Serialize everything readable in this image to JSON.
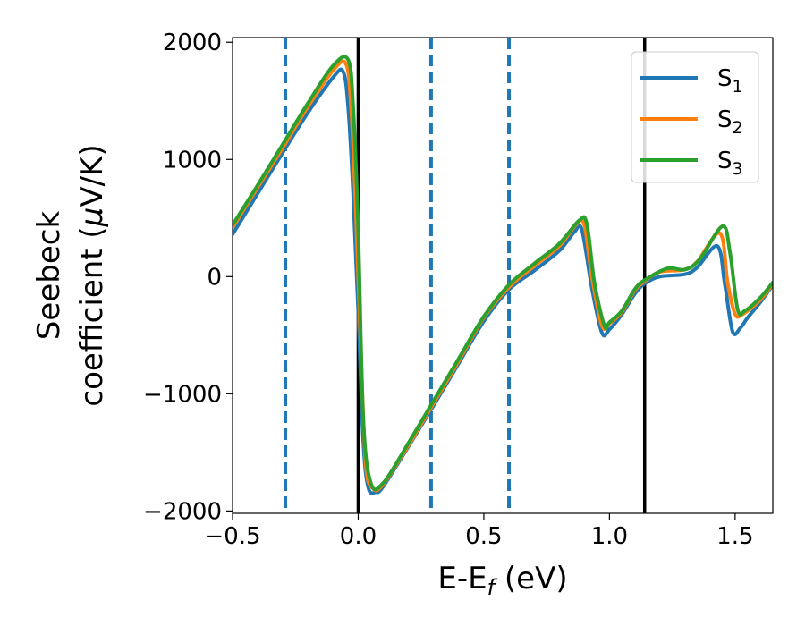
{
  "chart_data": {
    "type": "line",
    "xlabel": "E-E",
    "xlabel_sub": "f",
    "xlabel_unit": " (eV)",
    "ylabel_line1": "Seebeck",
    "ylabel_line2": "coefficient  (",
    "ylabel_mu": "μ",
    "ylabel_unit": "V/K)",
    "xlim": [
      -0.5,
      1.65
    ],
    "ylim": [
      -2020,
      2040
    ],
    "xticks": [
      -0.5,
      0.0,
      0.5,
      1.0,
      1.5
    ],
    "xtick_labels": [
      "−0.5",
      "0.0",
      "0.5",
      "1.0",
      "1.5"
    ],
    "yticks": [
      -2000,
      -1000,
      0,
      1000,
      2000
    ],
    "ytick_labels": [
      "−2000",
      "−1000",
      "0",
      "1000",
      "2000"
    ],
    "grid": false,
    "legend_position": "top-right",
    "vlines_solid": [
      0.0,
      1.14
    ],
    "vlines_dashed": [
      -0.29,
      0.29,
      0.6
    ],
    "vline_solid_color": "#000000",
    "vline_dashed_color": "#1f77b4",
    "series": [
      {
        "name": "S",
        "sub": "1",
        "color": "#1f77b4",
        "x": [
          -0.5,
          -0.4,
          -0.3,
          -0.2,
          -0.1,
          -0.06,
          -0.04,
          -0.02,
          0.0,
          0.02,
          0.04,
          0.07,
          0.1,
          0.2,
          0.3,
          0.4,
          0.5,
          0.6,
          0.7,
          0.8,
          0.86,
          0.89,
          0.93,
          0.97,
          1.0,
          1.05,
          1.1,
          1.14,
          1.2,
          1.3,
          1.35,
          1.43,
          1.46,
          1.49,
          1.52,
          1.55,
          1.6,
          1.65
        ],
        "y": [
          360,
          710,
          1060,
          1400,
          1700,
          1750,
          1450,
          700,
          -300,
          -1400,
          -1800,
          -1840,
          -1790,
          -1450,
          -1100,
          -740,
          -380,
          -110,
          50,
          220,
          380,
          400,
          -100,
          -480,
          -450,
          -320,
          -150,
          -60,
          0,
          20,
          80,
          260,
          -80,
          -470,
          -440,
          -350,
          -220,
          -70
        ]
      },
      {
        "name": "S",
        "sub": "2",
        "color": "#ff7f0e",
        "x": [
          -0.5,
          -0.4,
          -0.3,
          -0.2,
          -0.1,
          -0.05,
          -0.03,
          -0.01,
          0.01,
          0.03,
          0.06,
          0.1,
          0.2,
          0.3,
          0.4,
          0.5,
          0.6,
          0.7,
          0.8,
          0.87,
          0.9,
          0.93,
          0.97,
          1.0,
          1.05,
          1.1,
          1.14,
          1.2,
          1.3,
          1.35,
          1.44,
          1.47,
          1.5,
          1.53,
          1.6,
          1.65
        ],
        "y": [
          420,
          760,
          1100,
          1450,
          1760,
          1820,
          1500,
          600,
          -600,
          -1600,
          -1810,
          -1770,
          -1440,
          -1080,
          -720,
          -350,
          -90,
          90,
          260,
          450,
          440,
          0,
          -420,
          -400,
          -300,
          -120,
          -40,
          40,
          60,
          130,
          370,
          -50,
          -320,
          -320,
          -200,
          -60
        ]
      },
      {
        "name": "S",
        "sub": "3",
        "color": "#2ca02c",
        "x": [
          -0.5,
          -0.4,
          -0.3,
          -0.2,
          -0.1,
          -0.04,
          -0.02,
          0.0,
          0.02,
          0.05,
          0.1,
          0.2,
          0.3,
          0.4,
          0.5,
          0.6,
          0.7,
          0.8,
          0.88,
          0.91,
          0.94,
          0.98,
          1.0,
          1.05,
          1.1,
          1.14,
          1.23,
          1.3,
          1.36,
          1.45,
          1.48,
          1.51,
          1.54,
          1.6,
          1.65
        ],
        "y": [
          440,
          780,
          1130,
          1480,
          1800,
          1850,
          1450,
          400,
          -1200,
          -1760,
          -1760,
          -1420,
          -1060,
          -700,
          -340,
          -70,
          110,
          280,
          480,
          450,
          -50,
          -420,
          -390,
          -290,
          -110,
          -30,
          70,
          60,
          150,
          430,
          200,
          -280,
          -290,
          -180,
          -50
        ]
      }
    ]
  }
}
